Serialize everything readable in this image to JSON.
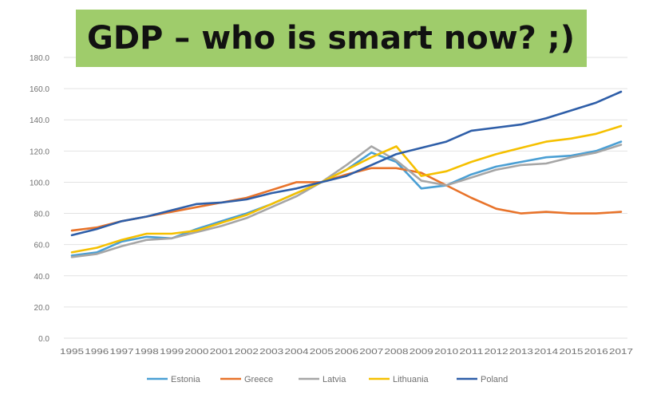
{
  "chart_data": {
    "type": "line",
    "title": "GDP – who is smart now? ;)",
    "xlabel": "",
    "ylabel": "",
    "ylim": [
      0,
      180
    ],
    "yticks": [
      "0.0",
      "20.0",
      "40.0",
      "60.0",
      "80.0",
      "100.0",
      "120.0",
      "140.0",
      "160.0",
      "180.0"
    ],
    "grid": true,
    "legend_position": "bottom",
    "categories": [
      "1995",
      "1996",
      "1997",
      "1998",
      "1999",
      "2000",
      "2001",
      "2002",
      "2003",
      "2004",
      "2005",
      "2006",
      "2007",
      "2008",
      "2009",
      "2010",
      "2011",
      "2012",
      "2013",
      "2014",
      "2015",
      "2016",
      "2017"
    ],
    "series": [
      {
        "name": "Estonia",
        "color": "#4a9fd4",
        "values": [
          53,
          55,
          62,
          65,
          64,
          70,
          75,
          80,
          86,
          93,
          100,
          108,
          119,
          113,
          96,
          98,
          105,
          110,
          113,
          116,
          117,
          120,
          126
        ]
      },
      {
        "name": "Greece",
        "color": "#e8732a",
        "values": [
          69,
          71,
          75,
          78,
          81,
          84,
          87,
          90,
          95,
          100,
          100,
          105,
          109,
          109,
          106,
          98,
          90,
          83,
          80,
          81,
          80,
          80,
          81
        ]
      },
      {
        "name": "Latvia",
        "color": "#a6a6a6",
        "values": [
          52,
          54,
          59,
          63,
          64,
          68,
          72,
          77,
          84,
          91,
          100,
          111,
          123,
          114,
          101,
          98,
          103,
          108,
          111,
          112,
          116,
          119,
          124
        ]
      },
      {
        "name": "Lithuania",
        "color": "#f5c000",
        "values": [
          55,
          58,
          63,
          67,
          67,
          69,
          74,
          79,
          86,
          93,
          100,
          108,
          116,
          123,
          104,
          107,
          113,
          118,
          122,
          126,
          128,
          131,
          136
        ]
      },
      {
        "name": "Poland",
        "color": "#2e5ea8",
        "values": [
          66,
          70,
          75,
          78,
          82,
          86,
          87,
          89,
          93,
          96,
          100,
          104,
          111,
          118,
          122,
          126,
          133,
          135,
          137,
          141,
          146,
          151,
          158
        ]
      }
    ]
  }
}
